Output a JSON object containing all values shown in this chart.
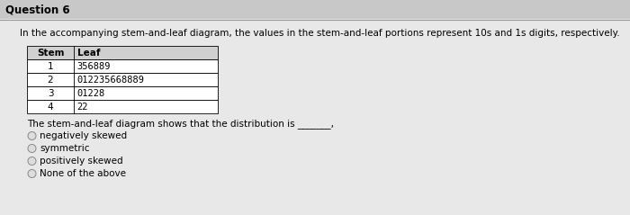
{
  "question_number": "Question 6",
  "description": "In the accompanying stem-and-leaf diagram, the values in the stem-and-leaf portions represent 10s and 1s digits, respectively.",
  "table_headers": [
    "Stem",
    "Leaf"
  ],
  "table_data": [
    [
      "1",
      "356889"
    ],
    [
      "2",
      "012235668889"
    ],
    [
      "3",
      "01228"
    ],
    [
      "4",
      "22"
    ]
  ],
  "question_text": "The stem-and-leaf diagram shows that the distribution is _______,",
  "options": [
    "negatively skewed",
    "symmetric",
    "positively skewed",
    "None of the above"
  ],
  "outer_bg": "#c8c8c8",
  "inner_bg": "#e8e8e8",
  "table_bg": "#ffffff",
  "header_bg": "#d0d0d0",
  "font_size_question": 8.5,
  "font_size_body": 7.5,
  "font_size_table": 7.5
}
